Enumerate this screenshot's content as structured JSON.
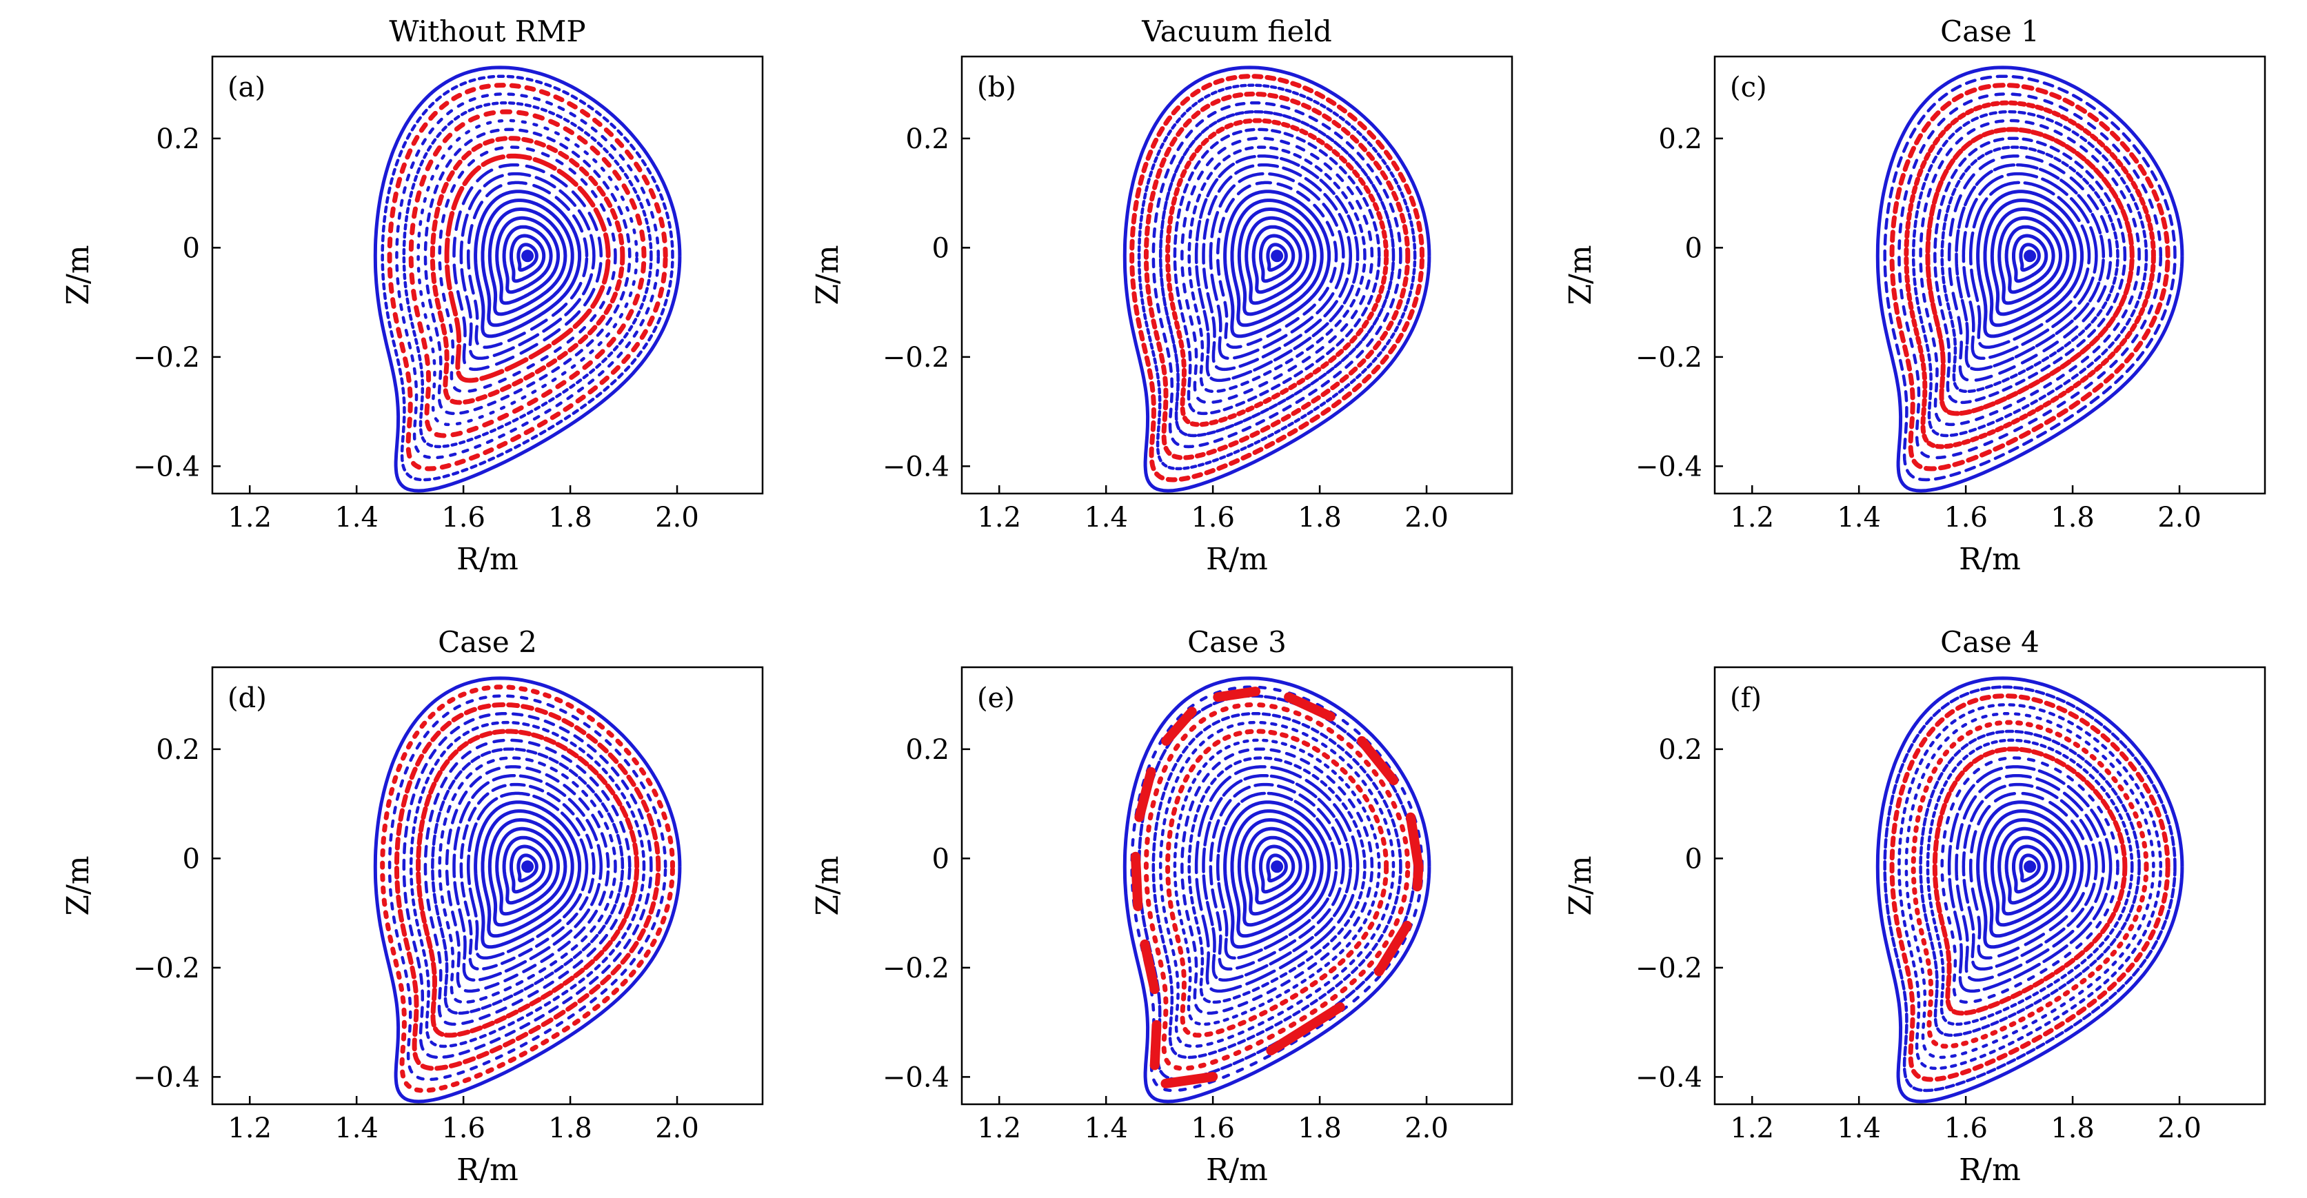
{
  "figure": {
    "colors": {
      "primary": "#1a1ad6",
      "island": "#e8141a",
      "axis": "#000000"
    }
  },
  "chart_data": [
    {
      "type": "scatter",
      "panel": "(a)",
      "title": "Without RMP",
      "xlabel": "R/m",
      "ylabel": "Z/m",
      "xlim": [
        1.13,
        2.16
      ],
      "ylim": [
        -0.45,
        0.35
      ],
      "xticks": [
        1.2,
        1.4,
        1.6,
        1.8,
        2.0
      ],
      "xtick_labels": [
        "1.2",
        "1.4",
        "1.6",
        "1.8",
        "2.0"
      ],
      "yticks": [
        -0.4,
        -0.2,
        0,
        0.2
      ],
      "ytick_labels": [
        "−0.4",
        "−0.2",
        "0",
        "0.2"
      ],
      "axis_center": [
        1.72,
        -0.015
      ],
      "red_surfaces_fraction": [
        0.52,
        0.64,
        0.78,
        0.9
      ],
      "island_chains": false
    },
    {
      "type": "scatter",
      "panel": "(b)",
      "title": "Vacuum field",
      "xlabel": "R/m",
      "ylabel": "Z/m",
      "xlim": [
        1.13,
        2.16
      ],
      "ylim": [
        -0.45,
        0.35
      ],
      "xticks": [
        1.2,
        1.4,
        1.6,
        1.8,
        2.0
      ],
      "xtick_labels": [
        "1.2",
        "1.4",
        "1.6",
        "1.8",
        "2.0"
      ],
      "yticks": [
        -0.4,
        -0.2,
        0,
        0.2
      ],
      "ytick_labels": [
        "−0.4",
        "−0.2",
        "0",
        "0.2"
      ],
      "axis_center": [
        1.72,
        -0.015
      ],
      "red_surfaces_fraction": [
        0.72,
        0.84,
        0.95
      ],
      "island_chains": false
    },
    {
      "type": "scatter",
      "panel": "(c)",
      "title": "Case 1",
      "xlabel": "R/m",
      "ylabel": "Z/m",
      "xlim": [
        1.13,
        2.16
      ],
      "ylim": [
        -0.45,
        0.35
      ],
      "xticks": [
        1.2,
        1.4,
        1.6,
        1.8,
        2.0
      ],
      "xtick_labels": [
        "1.2",
        "1.4",
        "1.6",
        "1.8",
        "2.0"
      ],
      "yticks": [
        -0.4,
        -0.2,
        0,
        0.2
      ],
      "ytick_labels": [
        "−0.4",
        "−0.2",
        "0",
        "0.2"
      ],
      "axis_center": [
        1.72,
        -0.015
      ],
      "red_surfaces_fraction": [
        0.68,
        0.82,
        0.92
      ],
      "island_chains": false
    },
    {
      "type": "scatter",
      "panel": "(d)",
      "title": "Case 2",
      "xlabel": "R/m",
      "ylabel": "Z/m",
      "xlim": [
        1.13,
        2.16
      ],
      "ylim": [
        -0.45,
        0.35
      ],
      "xticks": [
        1.2,
        1.4,
        1.6,
        1.8,
        2.0
      ],
      "xtick_labels": [
        "1.2",
        "1.4",
        "1.6",
        "1.8",
        "2.0"
      ],
      "yticks": [
        -0.4,
        -0.2,
        0,
        0.2
      ],
      "ytick_labels": [
        "−0.4",
        "−0.2",
        "0",
        "0.2"
      ],
      "axis_center": [
        1.72,
        -0.015
      ],
      "red_surfaces_fraction": [
        0.7,
        0.84,
        0.94
      ],
      "island_chains": false
    },
    {
      "type": "scatter",
      "panel": "(e)",
      "title": "Case 3",
      "xlabel": "R/m",
      "ylabel": "Z/m",
      "xlim": [
        1.13,
        2.16
      ],
      "ylim": [
        -0.45,
        0.35
      ],
      "xticks": [
        1.2,
        1.4,
        1.6,
        1.8,
        2.0
      ],
      "xtick_labels": [
        "1.2",
        "1.4",
        "1.6",
        "1.8",
        "2.0"
      ],
      "yticks": [
        -0.4,
        -0.2,
        0,
        0.2
      ],
      "ytick_labels": [
        "−0.4",
        "−0.2",
        "0",
        "0.2"
      ],
      "axis_center": [
        1.72,
        -0.015
      ],
      "red_surfaces_fraction": [
        0.72,
        0.86
      ],
      "island_chains": true
    },
    {
      "type": "scatter",
      "panel": "(f)",
      "title": "Case 4",
      "xlabel": "R/m",
      "ylabel": "Z/m",
      "xlim": [
        1.13,
        2.16
      ],
      "ylim": [
        -0.45,
        0.35
      ],
      "xticks": [
        1.2,
        1.4,
        1.6,
        1.8,
        2.0
      ],
      "xtick_labels": [
        "1.2",
        "1.4",
        "1.6",
        "1.8",
        "2.0"
      ],
      "yticks": [
        -0.4,
        -0.2,
        0,
        0.2
      ],
      "ytick_labels": [
        "−0.4",
        "−0.2",
        "0",
        "0.2"
      ],
      "axis_center": [
        1.72,
        -0.015
      ],
      "red_surfaces_fraction": [
        0.62,
        0.76,
        0.9
      ],
      "island_chains": false
    }
  ]
}
